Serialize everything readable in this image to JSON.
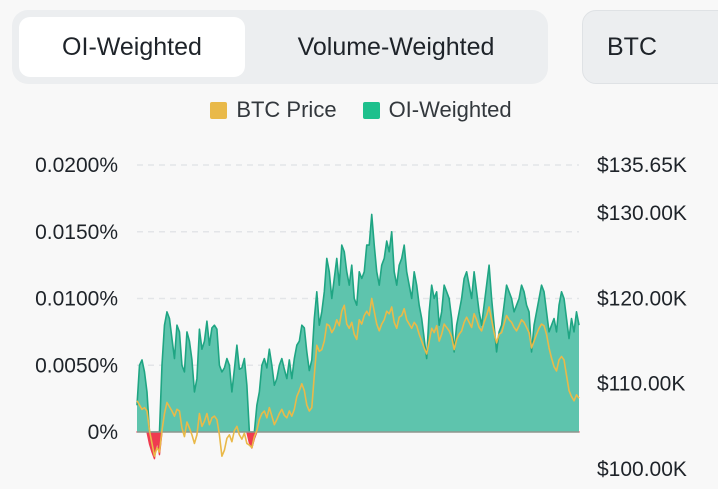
{
  "tabs": [
    {
      "label": "OI-Weighted",
      "active": true
    },
    {
      "label": "Volume-Weighted",
      "active": false
    }
  ],
  "symbol": {
    "value": "BTC"
  },
  "legend": [
    {
      "label": "BTC Price",
      "color": "#e9b949"
    },
    {
      "label": "OI-Weighted",
      "color": "#1ec08d"
    }
  ],
  "chart_data": {
    "type": "area",
    "title": "",
    "left_axis": {
      "ticks": [
        "0.0200%",
        "0.0150%",
        "0.0100%",
        "0.0050%",
        "0%"
      ],
      "values": [
        0.02,
        0.015,
        0.01,
        0.005,
        0
      ],
      "ylim": [
        -0.0021,
        0.02
      ]
    },
    "right_axis": {
      "ticks": [
        "$135.65K",
        "$130.00K",
        "$120.00K",
        "$110.00K",
        "$100.00K"
      ],
      "values": [
        135650,
        130000,
        120000,
        110000,
        100000
      ],
      "ylim": [
        100000,
        135650
      ]
    },
    "grid": true,
    "colors": {
      "positive_fill": "#5ec4ad",
      "positive_line": "#1fa583",
      "negative": "#ef3b50",
      "price": "#e9b949"
    },
    "series": [
      {
        "name": "OI-Weighted",
        "axis": "left",
        "values": [
          0.002,
          0.005,
          0.0054,
          0.0045,
          0.003,
          -0.0009,
          -0.0015,
          -0.002,
          -0.0006,
          -0.0017,
          0.005,
          0.008,
          0.009,
          0.0085,
          0.007,
          0.0055,
          0.008,
          0.0075,
          0.005,
          0.0045,
          0.0075,
          0.0068,
          0.0054,
          0.003,
          0.004,
          0.0077,
          0.0062,
          0.0068,
          0.0083,
          0.0065,
          0.0078,
          0.008,
          0.0077,
          0.005,
          0.0045,
          0.0048,
          0.0055,
          0.005,
          0.003,
          0.0047,
          0.0065,
          0.0047,
          0.0048,
          0.0055,
          0.0035,
          -0.0008,
          -0.0012,
          -0.0005,
          0.002,
          0.003,
          0.005,
          0.0055,
          0.0048,
          0.0062,
          0.005,
          0.0035,
          0.004,
          0.005,
          0.0055,
          0.0047,
          0.004,
          0.0054,
          0.004,
          0.0055,
          0.0065,
          0.0068,
          0.008,
          0.0078,
          0.006,
          0.0046,
          0.0054,
          0.0085,
          0.0105,
          0.008,
          0.009,
          0.0105,
          0.013,
          0.012,
          0.01,
          0.0115,
          0.013,
          0.011,
          0.014,
          0.0135,
          0.012,
          0.011,
          0.0125,
          0.01,
          0.0095,
          0.012,
          0.0115,
          0.012,
          0.014,
          0.014,
          0.0163,
          0.014,
          0.012,
          0.011,
          0.0125,
          0.013,
          0.0143,
          0.0135,
          0.015,
          0.012,
          0.011,
          0.0125,
          0.013,
          0.014,
          0.012,
          0.011,
          0.01,
          0.012,
          0.011,
          0.0095,
          0.0085,
          0.007,
          0.0055,
          0.009,
          0.011,
          0.01,
          0.0105,
          0.008,
          0.009,
          0.011,
          0.0105,
          0.01,
          0.0085,
          0.006,
          0.008,
          0.009,
          0.01,
          0.0115,
          0.012,
          0.011,
          0.01,
          0.012,
          0.0105,
          0.009,
          0.008,
          0.0095,
          0.011,
          0.0125,
          0.01,
          0.008,
          0.006,
          0.0075,
          0.008,
          0.0095,
          0.011,
          0.0105,
          0.01,
          0.009,
          0.0095,
          0.01,
          0.011,
          0.0105,
          0.0095,
          0.009,
          0.006,
          0.008,
          0.009,
          0.01,
          0.011,
          0.0105,
          0.009,
          0.0075,
          0.008,
          0.0085,
          0.0075,
          0.0095,
          0.0105,
          0.01,
          0.0085,
          0.007,
          0.0085,
          0.0075,
          0.009,
          0.008
        ]
      },
      {
        "name": "BTC Price",
        "axis": "right",
        "values": [
          108000,
          107500,
          107000,
          107200,
          106800,
          104500,
          103000,
          101500,
          102500,
          102000,
          104500,
          106500,
          107800,
          107300,
          106800,
          106200,
          107000,
          106800,
          104800,
          103800,
          105500,
          104800,
          104000,
          103000,
          104000,
          106500,
          105000,
          105600,
          106500,
          105200,
          106000,
          106200,
          105800,
          104000,
          101500,
          102200,
          103600,
          104000,
          103200,
          104500,
          105000,
          104000,
          103500,
          104200,
          103000,
          102800,
          102500,
          103800,
          104500,
          105800,
          106500,
          106800,
          106000,
          107200,
          106200,
          105200,
          105800,
          106500,
          107000,
          106300,
          106000,
          106800,
          106200,
          107000,
          108500,
          109200,
          110000,
          109200,
          107500,
          106800,
          107200,
          111000,
          114500,
          113800,
          114000,
          115000,
          117000,
          116800,
          116000,
          116500,
          117500,
          116800,
          118500,
          119200,
          117000,
          116500,
          117200,
          115800,
          115200,
          117500,
          117000,
          118000,
          118500,
          118000,
          120000,
          118500,
          117000,
          116200,
          117000,
          117500,
          118500,
          118200,
          119000,
          117200,
          116500,
          117800,
          118000,
          118800,
          117500,
          117000,
          116500,
          117200,
          116800,
          115800,
          115000,
          114200,
          113500,
          115000,
          116500,
          116000,
          116800,
          115000,
          115800,
          117000,
          116600,
          116200,
          115500,
          114000,
          115200,
          115800,
          116200,
          117200,
          117800,
          117200,
          116600,
          118200,
          117500,
          116600,
          116200,
          117200,
          118000,
          119000,
          117500,
          116000,
          114800,
          115800,
          116000,
          117000,
          118000,
          117500,
          117200,
          116600,
          116200,
          116800,
          117500,
          117200,
          116600,
          116000,
          114200,
          115000,
          115800,
          116500,
          117000,
          116800,
          115800,
          114200,
          113000,
          112000,
          111500,
          112800,
          113200,
          112800,
          111000,
          109200,
          108500,
          108000,
          108700,
          108300
        ]
      }
    ]
  }
}
